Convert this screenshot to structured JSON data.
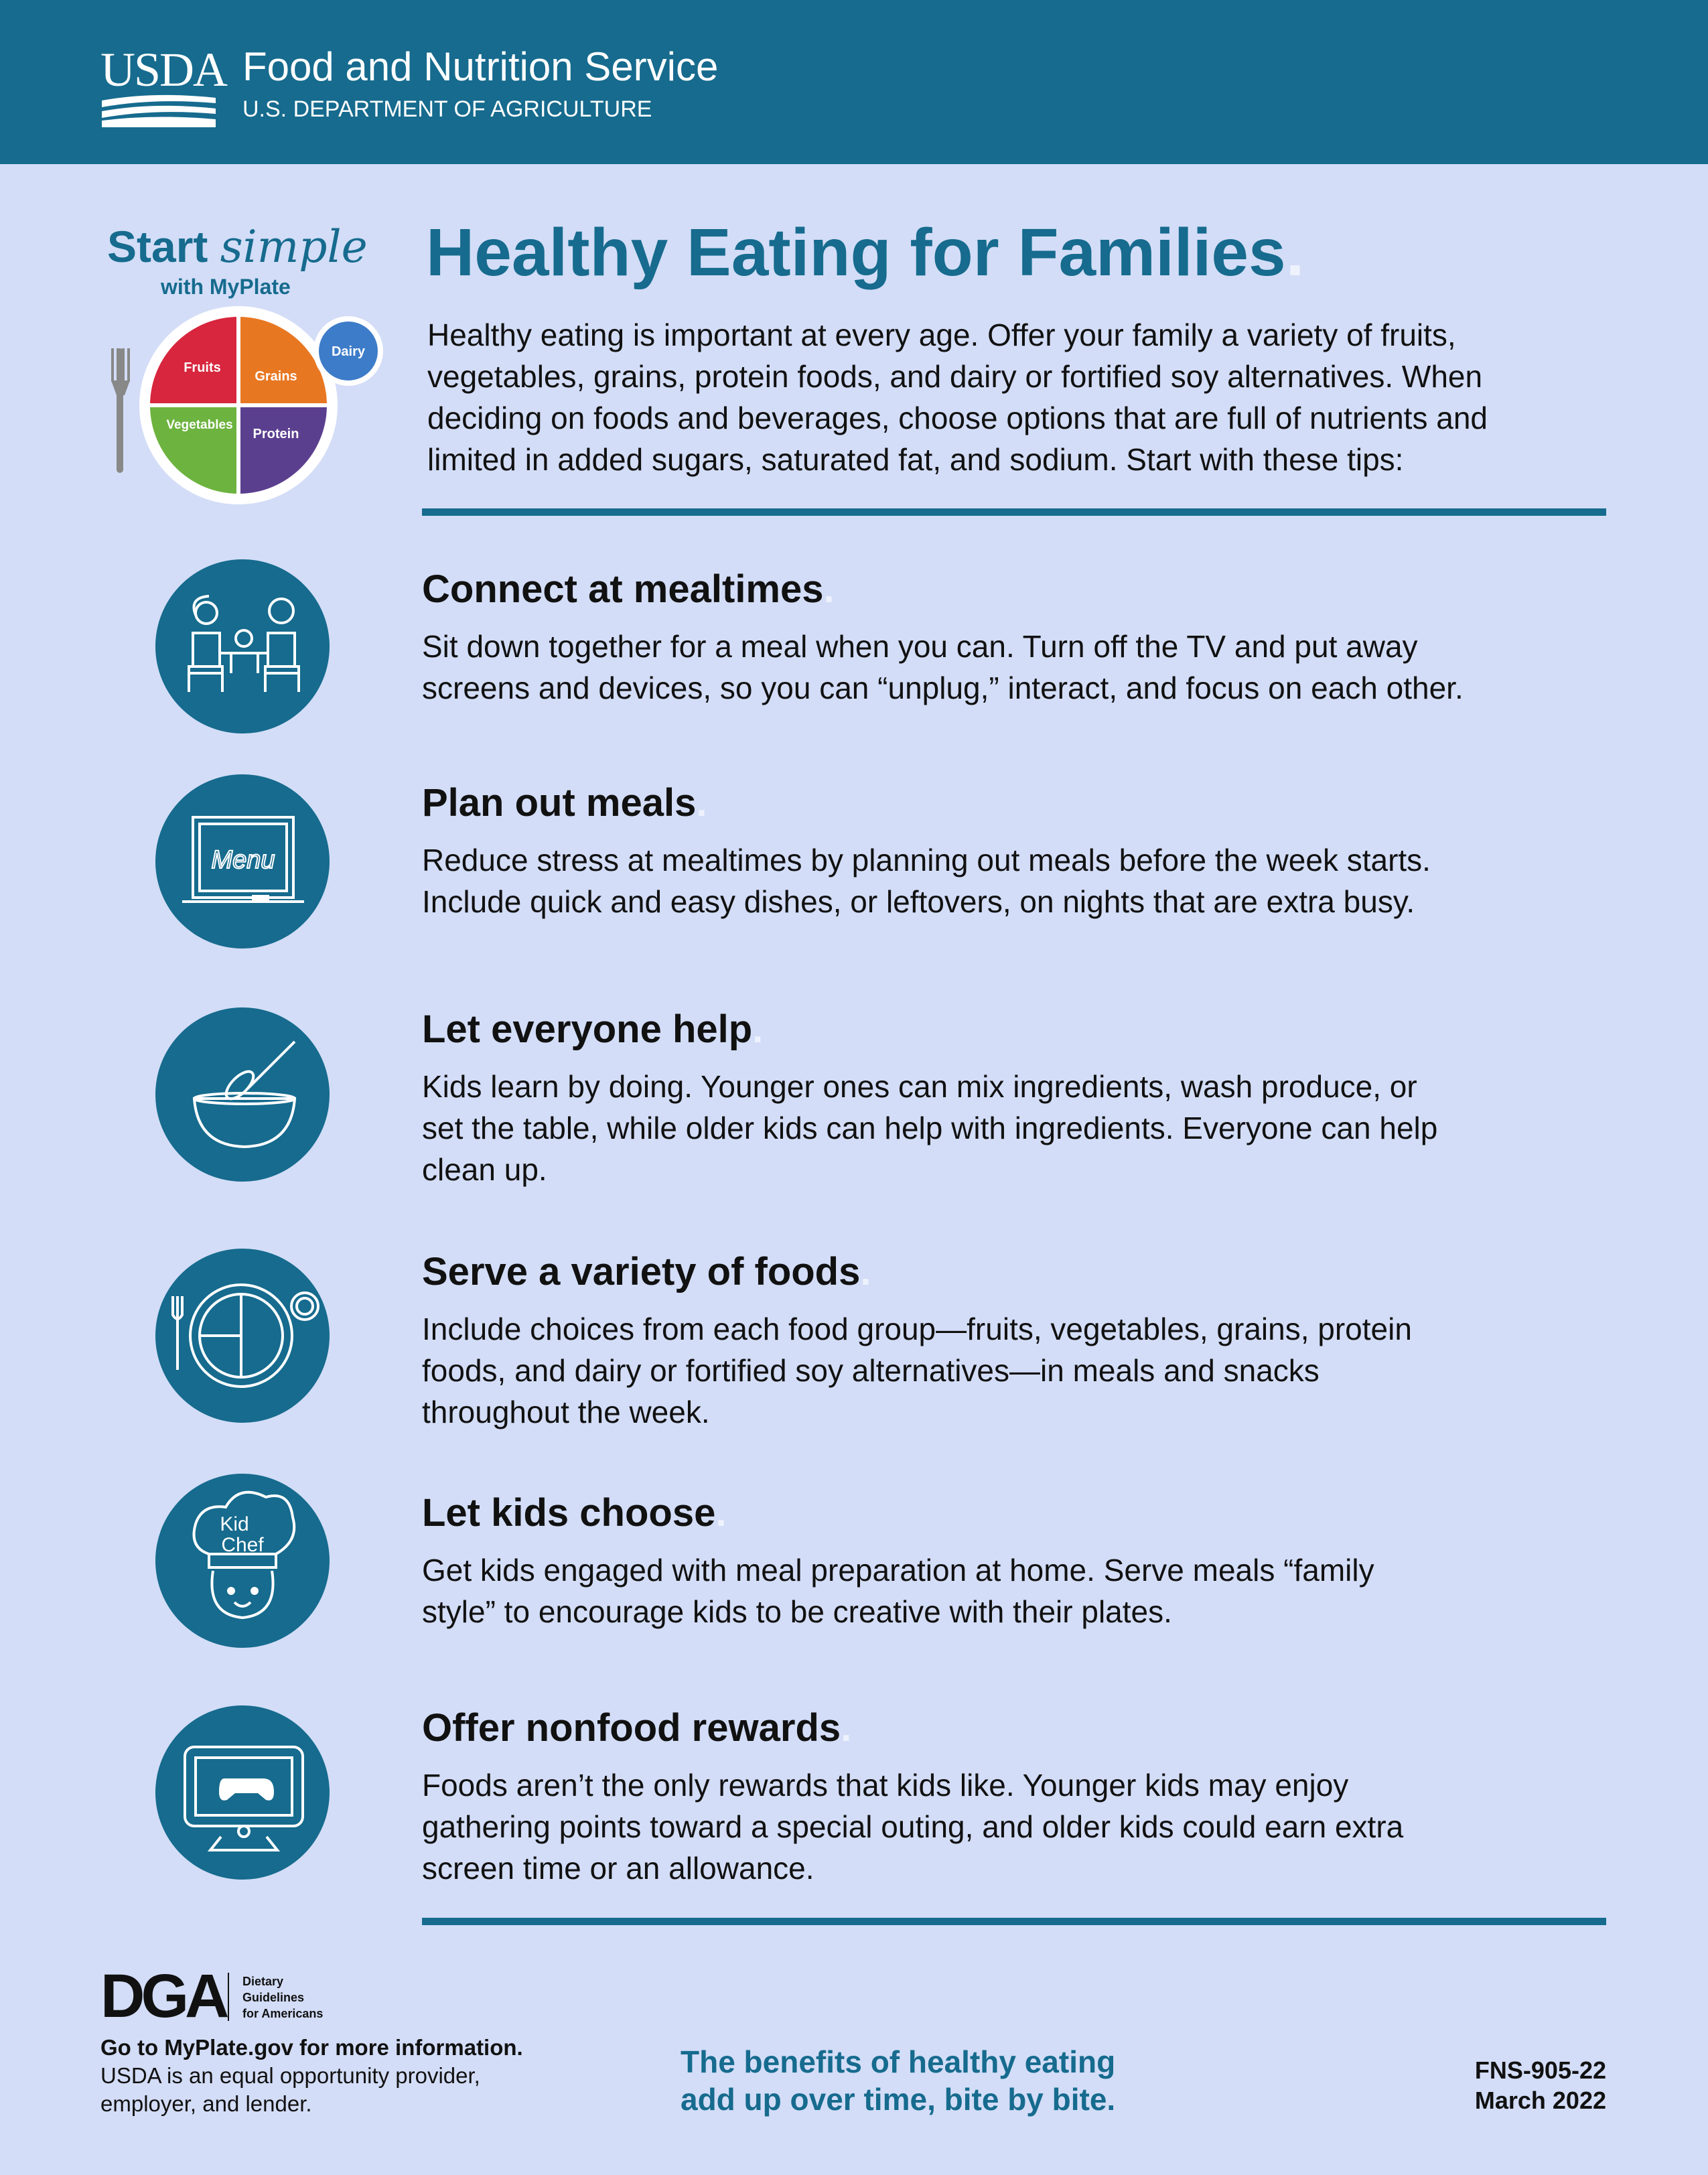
{
  "header": {
    "agency_logo": "USDA",
    "service": "Food and Nutrition Service",
    "department": "U.S. DEPARTMENT OF AGRICULTURE"
  },
  "logo": {
    "start": "Start",
    "simple": "simple",
    "with": "with",
    "myplate": "MyPlate",
    "plate": {
      "fruits": "Fruits",
      "grains": "Grains",
      "vegetables": "Vegetables",
      "protein": "Protein",
      "dairy": "Dairy"
    }
  },
  "accent": ".",
  "title": "Healthy Eating for Families",
  "intro": [
    "Healthy eating is important at every age. Offer your family a variety of fruits,",
    "vegetables, grains, protein foods, and dairy or fortified soy alternatives. When",
    "deciding on foods and beverages, choose options that are full of nutrients and",
    "limited in added sugars, saturated fat, and sodium. Start with these tips:"
  ],
  "icons": {
    "menu": "Menu",
    "kid": "Kid",
    "chef": "Chef"
  },
  "tips": [
    {
      "heading": "Connect at mealtimes",
      "body": [
        "Sit down together for a meal when you can. Turn off the TV and put away",
        "screens and devices, so you can “unplug,” interact, and focus on each other."
      ]
    },
    {
      "heading": "Plan out meals",
      "body": [
        "Reduce stress at mealtimes by planning out meals before the week starts.",
        "Include quick and easy dishes, or leftovers, on nights that are extra busy."
      ]
    },
    {
      "heading": "Let everyone help",
      "body": [
        "Kids learn by doing. Younger ones can mix ingredients, wash produce, or",
        "set the table, while older kids can help with ingredients. Everyone can help",
        "clean up."
      ]
    },
    {
      "heading": "Serve a variety of foods",
      "body": [
        "Include choices from each food group—fruits, vegetables, grains, protein",
        "foods, and dairy or fortified soy alternatives—in meals and snacks",
        "throughout the week."
      ]
    },
    {
      "heading": "Let kids choose",
      "body": [
        "Get kids engaged with meal preparation at home. Serve meals “family",
        "style” to encourage kids to be creative with their plates."
      ]
    },
    {
      "heading": "Offer nonfood rewards",
      "body": [
        "Foods aren’t the only rewards that kids like. Younger kids may enjoy",
        "gathering points toward a special outing, and older kids could earn extra",
        "screen time or an allowance."
      ]
    }
  ],
  "footer": {
    "dga_logo": "DGA",
    "dga_name": [
      "Dietary",
      "Guidelines",
      "for Americans"
    ],
    "goto": {
      "before": "Go to ",
      "site": "MyPlate",
      "after": ".gov for more information."
    },
    "equal_opportunity": [
      "USDA is an equal opportunity provider,",
      "employer, and lender."
    ],
    "tagline": [
      "The benefits of healthy eating",
      "add up over time, bite by bite."
    ],
    "code": "FNS-905-22",
    "date": "March 2022"
  }
}
